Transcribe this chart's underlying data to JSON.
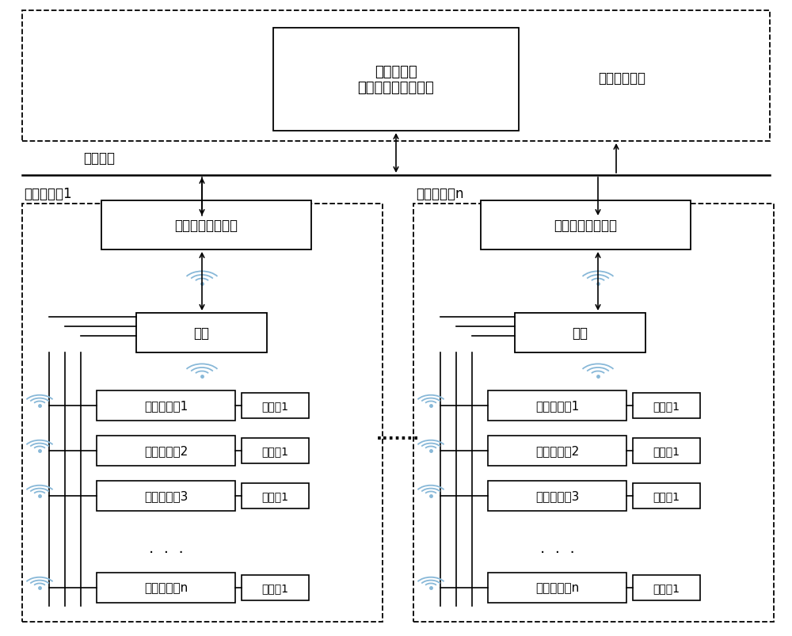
{
  "bg_color": "#ffffff",
  "box_color": "#ffffff",
  "border_color": "#000000",
  "text_color": "#000000",
  "title_top": "远程服务器\n或光伏电站主控系统",
  "label_expandable": "可拓展的功能",
  "label_bus": "通讯总线",
  "label_cabinet1": "逆变器机柜1",
  "label_cabinetn": "逆变器机柜n",
  "label_controller": "信号采集及控制器",
  "label_antenna": "天线",
  "label_dots": "·······",
  "sensors": [
    "测温传感器1",
    "测温传感器2",
    "测温传感器3",
    "测温传感器n"
  ],
  "test_points": [
    "测试点1",
    "测试点1",
    "测试点1",
    "测试点1"
  ],
  "wifi_color": "#88b8d8",
  "font_size_main": 13,
  "font_size_label": 12,
  "font_size_small": 11
}
